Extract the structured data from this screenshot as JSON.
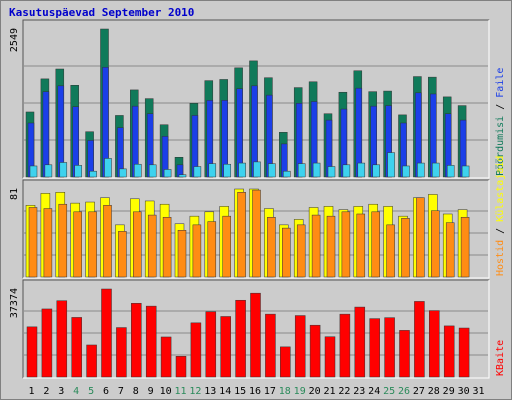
{
  "chart_data": {
    "type": "bar",
    "title": "Kasutuspäevad September 2010",
    "categories": [
      "1",
      "2",
      "3",
      "4",
      "5",
      "6",
      "7",
      "8",
      "9",
      "10",
      "11",
      "12",
      "13",
      "14",
      "15",
      "16",
      "17",
      "18",
      "19",
      "20",
      "21",
      "22",
      "23",
      "24",
      "25",
      "26",
      "27",
      "28",
      "29",
      "30",
      "31"
    ],
    "weekend_days": [
      4,
      5,
      11,
      12,
      18,
      19,
      25,
      26
    ],
    "panels": [
      {
        "id": "top",
        "max_label": "2549",
        "max": 2549,
        "series": [
          {
            "name": "Pöördumisi",
            "color": "#107a5a",
            "values": [
              1120,
              1690,
              1860,
              1580,
              780,
              2549,
              1060,
              1500,
              1350,
              900,
              340,
              1270,
              1660,
              1680,
              1880,
              2000,
              1710,
              770,
              1540,
              1640,
              1090,
              1460,
              1830,
              1470,
              1480,
              1070,
              1730,
              1720,
              1380,
              1230,
              0
            ]
          },
          {
            "name": "Faile",
            "color": "#1b3fe8",
            "values": [
              930,
              1470,
              1570,
              1210,
              630,
              1890,
              850,
              1220,
              1090,
              700,
              210,
              1060,
              1320,
              1320,
              1520,
              1570,
              1410,
              570,
              1270,
              1300,
              980,
              1170,
              1530,
              1220,
              1230,
              930,
              1450,
              1430,
              1090,
              980,
              0
            ]
          },
          {
            "name": "Külastajaid",
            "color": "#3ed2ee",
            "values": [
              190,
              210,
              250,
              200,
              100,
              320,
              140,
              220,
              210,
              130,
              40,
              180,
              230,
              220,
              240,
              260,
              230,
              100,
              230,
              240,
              180,
              210,
              240,
              210,
              420,
              190,
              240,
              240,
              200,
              190,
              0
            ]
          }
        ],
        "legend_order": [
          "Pöördumisi",
          "Faile"
        ]
      },
      {
        "id": "mid",
        "max_label": "81",
        "max": 81,
        "series": [
          {
            "name": "Külastajaid",
            "color": "#ffff00",
            "values": [
              66,
              77,
              78,
              68,
              69,
              73,
              48,
              72,
              70,
              67,
              49,
              56,
              60,
              65,
              81,
              81,
              63,
              48,
              53,
              64,
              65,
              62,
              65,
              67,
              65,
              56,
              73,
              76,
              58,
              62,
              0
            ]
          },
          {
            "name": "Hostid",
            "color": "#ff8c14",
            "values": [
              64,
              63,
              67,
              60,
              60,
              66,
              42,
              60,
              57,
              55,
              43,
              48,
              51,
              56,
              78,
              80,
              55,
              45,
              48,
              57,
              56,
              60,
              58,
              60,
              48,
              54,
              73,
              61,
              50,
              55,
              0
            ]
          }
        ],
        "legend_order": [
          "Hostid",
          "Külastajaid"
        ]
      },
      {
        "id": "bottom",
        "max_label": "37374",
        "max": 37374,
        "series": [
          {
            "name": "KBaite",
            "color": "#ff0000",
            "values": [
              21300,
              28900,
              32400,
              25300,
              13600,
              37374,
              21000,
              31300,
              30100,
              17000,
              8800,
              23000,
              27700,
              25700,
              32600,
              35600,
              26700,
              12800,
              26100,
              22000,
              17100,
              26700,
              29700,
              24800,
              25200,
              19800,
              32100,
              28200,
              21700,
              20800,
              0
            ]
          }
        ],
        "legend_order": [
          "KBaite"
        ]
      }
    ],
    "legend_separator": "/"
  }
}
